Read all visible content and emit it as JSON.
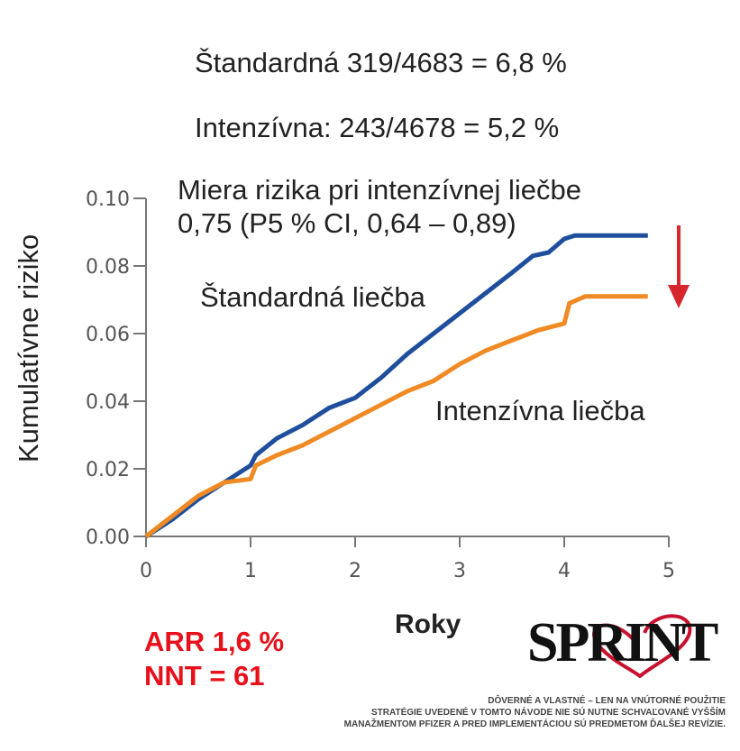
{
  "header": {
    "line1": "Štandardná 319/4683 = 6,8 %",
    "line2": "Intenzívna: 243/4678 = 5,2 %",
    "hr_line1": "Miera rizika pri intenzívnej liečbe",
    "hr_line2": "0,75 (P5 % CI, 0,64 – 0,89)"
  },
  "summary": {
    "arr": "ARR 1,6 %",
    "nnt": "NNT = 61",
    "color": "#e8101a"
  },
  "logo": {
    "text": "SPRINT"
  },
  "footer": {
    "line1": "DÔVERNÉ A VLASTNÉ – LEN NA VNÚTORNÉ POUŽITIE",
    "line2": "STRATÉGIE UVEDENÉ V TOMTO NÁVODE NIE SÚ NUTNE  SCHVAĽOVANÉ VYŠŠÍM",
    "line3": "MANAŽMENTOM PFIZER A PRED IMPLEMENTÁCIOU SÚ PREDMETOM ĎALŠEJ REVÍZIE."
  },
  "chart_data": {
    "type": "line",
    "title": "",
    "xlabel": "Roky",
    "ylabel": "Kumulatívne riziko",
    "xlim": [
      0,
      5
    ],
    "ylim": [
      0,
      0.1
    ],
    "xticks": [
      "0",
      "1",
      "2",
      "3",
      "4",
      "5"
    ],
    "yticks": [
      "0.00",
      "0.02",
      "0.04",
      "0.06",
      "0.08",
      "0.10"
    ],
    "grid": false,
    "series": [
      {
        "name": "Štandardná liečba",
        "color": "#1f4f9c",
        "x": [
          0,
          0.25,
          0.5,
          0.75,
          1,
          1.05,
          1.25,
          1.5,
          1.75,
          2,
          2.25,
          2.5,
          2.75,
          3,
          3.25,
          3.5,
          3.7,
          3.85,
          4,
          4.1,
          4.8
        ],
        "y": [
          0,
          0.005,
          0.011,
          0.016,
          0.021,
          0.024,
          0.029,
          0.033,
          0.038,
          0.041,
          0.047,
          0.054,
          0.06,
          0.066,
          0.072,
          0.078,
          0.083,
          0.084,
          0.088,
          0.089,
          0.089
        ]
      },
      {
        "name": "Intenzívna liečba",
        "color": "#f08a24",
        "x": [
          0,
          0.25,
          0.5,
          0.75,
          1,
          1.05,
          1.25,
          1.5,
          1.75,
          2,
          2.25,
          2.5,
          2.75,
          3,
          3.25,
          3.5,
          3.75,
          4,
          4.05,
          4.2,
          4.8
        ],
        "y": [
          0,
          0.006,
          0.012,
          0.016,
          0.017,
          0.021,
          0.024,
          0.027,
          0.031,
          0.035,
          0.039,
          0.043,
          0.046,
          0.051,
          0.055,
          0.058,
          0.061,
          0.063,
          0.069,
          0.071,
          0.071
        ]
      }
    ],
    "annotations": [
      "Štandardná liečba",
      "Intenzívna liečba",
      "down-arrow"
    ]
  }
}
